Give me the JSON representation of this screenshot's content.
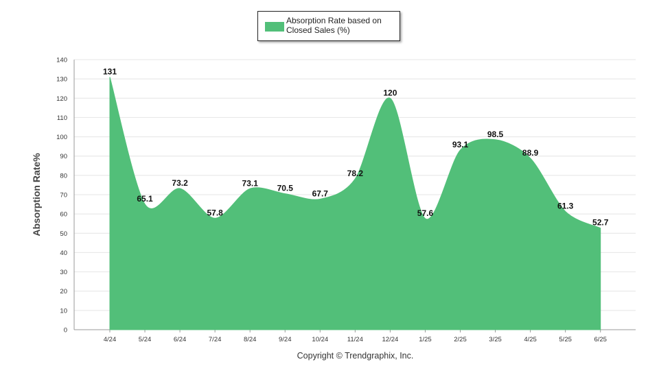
{
  "legend": {
    "label": "Absorption Rate based on Closed Sales (%)",
    "color": "#52bf79"
  },
  "copyright": "Copyright © Trendgraphix, Inc.",
  "chart_data": {
    "type": "area",
    "title": "",
    "xlabel": "",
    "ylabel": "Absorption Rate%",
    "ylim": [
      0,
      140
    ],
    "yticks": [
      0,
      10,
      20,
      30,
      40,
      50,
      60,
      70,
      80,
      90,
      100,
      110,
      120,
      130,
      140
    ],
    "grid": true,
    "legend_position": "top-center",
    "categories": [
      "4/24",
      "5/24",
      "6/24",
      "7/24",
      "8/24",
      "9/24",
      "10/24",
      "11/24",
      "12/24",
      "1/25",
      "2/25",
      "3/25",
      "4/25",
      "5/25",
      "6/25"
    ],
    "series": [
      {
        "name": "Absorption Rate based on Closed Sales (%)",
        "color": "#52bf79",
        "values": [
          131,
          65.1,
          73.2,
          57.8,
          73.1,
          70.5,
          67.7,
          78.2,
          120,
          57.6,
          93.1,
          98.5,
          88.9,
          61.3,
          52.7
        ],
        "labels": [
          "131",
          "65.1",
          "73.2",
          "57.8",
          "73.1",
          "70.5",
          "67.7",
          "78.2",
          "120",
          "57.6",
          "93.1",
          "98.5",
          "88.9",
          "61.3",
          "52.7"
        ]
      }
    ]
  }
}
